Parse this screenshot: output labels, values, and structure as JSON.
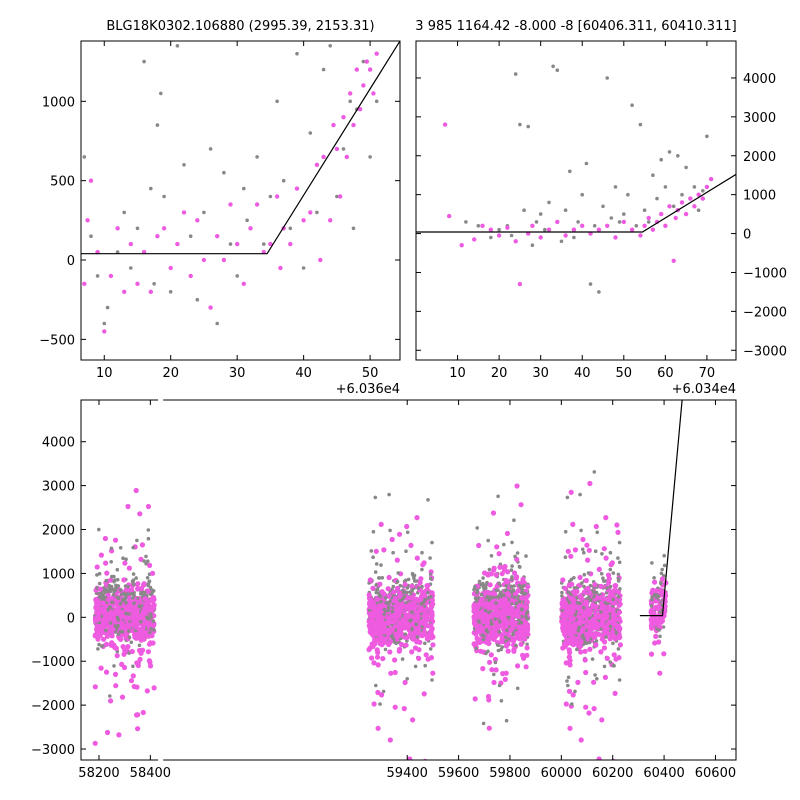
{
  "chart_data": [
    {
      "id": "panel_top_left",
      "type": "scatter",
      "title": "BLG18K0302.106880 (2995.39, 2153.31)",
      "x_offset_label": "+6.036e4",
      "xlim": [
        6.5,
        54.5
      ],
      "ylim": [
        -630,
        1380
      ],
      "xticks": [
        10,
        20,
        30,
        40,
        50
      ],
      "yticks": [
        -500,
        0,
        500,
        1000
      ],
      "ytick_side": "left",
      "series": [
        {
          "color": "#888888",
          "points": [
            [
              7,
              650
            ],
            [
              8,
              150
            ],
            [
              9,
              -100
            ],
            [
              10,
              -400
            ],
            [
              10.5,
              -300
            ],
            [
              12,
              50
            ],
            [
              13,
              300
            ],
            [
              14,
              -50
            ],
            [
              15,
              200
            ],
            [
              16,
              1250
            ],
            [
              17,
              450
            ],
            [
              17.5,
              -150
            ],
            [
              18,
              850
            ],
            [
              18.5,
              1050
            ],
            [
              19,
              400
            ],
            [
              20,
              -200
            ],
            [
              21,
              1350
            ],
            [
              22,
              600
            ],
            [
              23,
              150
            ],
            [
              24,
              -250
            ],
            [
              25,
              300
            ],
            [
              26,
              700
            ],
            [
              27,
              -400
            ],
            [
              28,
              550
            ],
            [
              29,
              100
            ],
            [
              30,
              -100
            ],
            [
              31,
              450
            ],
            [
              31.5,
              250
            ],
            [
              32,
              200
            ],
            [
              33,
              650
            ],
            [
              34,
              100
            ],
            [
              35,
              400
            ],
            [
              36,
              1000
            ],
            [
              37,
              500
            ],
            [
              38,
              200
            ],
            [
              39,
              1300
            ],
            [
              40,
              -50
            ],
            [
              41,
              800
            ],
            [
              42,
              300
            ],
            [
              43,
              1200
            ],
            [
              44,
              1350
            ],
            [
              45,
              400
            ],
            [
              46,
              700
            ],
            [
              47,
              1000
            ],
            [
              47.5,
              200
            ],
            [
              48,
              950
            ],
            [
              49,
              1250
            ],
            [
              50,
              650
            ],
            [
              51,
              1000
            ]
          ]
        },
        {
          "color": "#ee5ae0",
          "points": [
            [
              7,
              -150
            ],
            [
              7.5,
              250
            ],
            [
              8,
              500
            ],
            [
              9,
              50
            ],
            [
              10,
              -450
            ],
            [
              11,
              -100
            ],
            [
              12,
              200
            ],
            [
              13,
              -200
            ],
            [
              14,
              100
            ],
            [
              15,
              -150
            ],
            [
              16,
              50
            ],
            [
              17,
              -200
            ],
            [
              18,
              150
            ],
            [
              19,
              200
            ],
            [
              20,
              -50
            ],
            [
              21,
              100
            ],
            [
              22,
              300
            ],
            [
              23,
              -100
            ],
            [
              24,
              250
            ],
            [
              25,
              0
            ],
            [
              26,
              -300
            ],
            [
              27,
              150
            ],
            [
              28,
              0
            ],
            [
              29,
              350
            ],
            [
              30,
              100
            ],
            [
              31,
              -150
            ],
            [
              32,
              200
            ],
            [
              33,
              350
            ],
            [
              34,
              50
            ],
            [
              35,
              100
            ],
            [
              36,
              400
            ],
            [
              36.5,
              -50
            ],
            [
              37,
              200
            ],
            [
              38,
              100
            ],
            [
              39,
              450
            ],
            [
              40,
              250
            ],
            [
              41,
              300
            ],
            [
              42,
              600
            ],
            [
              42.5,
              0
            ],
            [
              43,
              650
            ],
            [
              44,
              250
            ],
            [
              44.5,
              850
            ],
            [
              45,
              700
            ],
            [
              45.5,
              400
            ],
            [
              46,
              900
            ],
            [
              46.5,
              650
            ],
            [
              47,
              1050
            ],
            [
              47.5,
              850
            ],
            [
              48,
              1200
            ],
            [
              48.5,
              950
            ],
            [
              49,
              1100
            ],
            [
              49.5,
              1250
            ],
            [
              50,
              1200
            ],
            [
              50.5,
              1050
            ],
            [
              51,
              1300
            ]
          ]
        }
      ],
      "model": [
        [
          6.5,
          40
        ],
        [
          34.5,
          40
        ],
        [
          54.5,
          1380
        ]
      ]
    },
    {
      "id": "panel_top_right",
      "type": "scatter",
      "title": "3 985 1164.42 -8.000 -8 [60406.311, 60410.311]",
      "x_offset_label": "+6.034e4",
      "xlim": [
        0,
        77
      ],
      "ylim": [
        -3250,
        4950
      ],
      "xticks": [
        10,
        20,
        30,
        40,
        50,
        60,
        70
      ],
      "yticks": [
        -3000,
        -2000,
        -1000,
        0,
        1000,
        2000,
        3000,
        4000
      ],
      "ytick_side": "right",
      "series": [
        {
          "color": "#888888",
          "points": [
            [
              12,
              300
            ],
            [
              15,
              200
            ],
            [
              18,
              -100
            ],
            [
              20,
              100
            ],
            [
              22,
              200
            ],
            [
              23,
              -50
            ],
            [
              24,
              4100
            ],
            [
              25,
              2800
            ],
            [
              26,
              600
            ],
            [
              27,
              2750
            ],
            [
              28,
              -300
            ],
            [
              29,
              300
            ],
            [
              30,
              500
            ],
            [
              31,
              100
            ],
            [
              32,
              800
            ],
            [
              33,
              4300
            ],
            [
              34,
              4200
            ],
            [
              35,
              -200
            ],
            [
              36,
              600
            ],
            [
              37,
              1600
            ],
            [
              38,
              -100
            ],
            [
              39,
              300
            ],
            [
              40,
              1000
            ],
            [
              41,
              1800
            ],
            [
              42,
              -1300
            ],
            [
              43,
              200
            ],
            [
              44,
              -1500
            ],
            [
              45,
              700
            ],
            [
              46,
              4000
            ],
            [
              47,
              400
            ],
            [
              48,
              1200
            ],
            [
              49,
              300
            ],
            [
              50,
              500
            ],
            [
              51,
              1000
            ],
            [
              52,
              3300
            ],
            [
              53,
              200
            ],
            [
              54,
              2800
            ],
            [
              55,
              600
            ],
            [
              56,
              300
            ],
            [
              57,
              1500
            ],
            [
              58,
              900
            ],
            [
              59,
              1900
            ],
            [
              60,
              1200
            ],
            [
              61,
              2100
            ],
            [
              62,
              700
            ],
            [
              63,
              2000
            ],
            [
              64,
              1000
            ],
            [
              65,
              1700
            ],
            [
              66,
              900
            ],
            [
              67,
              1200
            ],
            [
              68,
              600
            ],
            [
              69,
              1100
            ],
            [
              70,
              2500
            ]
          ]
        },
        {
          "color": "#ee5ae0",
          "points": [
            [
              7,
              2800
            ],
            [
              8,
              450
            ],
            [
              11,
              -300
            ],
            [
              14,
              -150
            ],
            [
              16,
              200
            ],
            [
              18,
              100
            ],
            [
              20,
              -50
            ],
            [
              22,
              150
            ],
            [
              24,
              -200
            ],
            [
              25,
              -1300
            ],
            [
              27,
              0
            ],
            [
              28,
              200
            ],
            [
              30,
              -100
            ],
            [
              32,
              100
            ],
            [
              34,
              300
            ],
            [
              36,
              -50
            ],
            [
              38,
              100
            ],
            [
              40,
              200
            ],
            [
              42,
              0
            ],
            [
              44,
              100
            ],
            [
              46,
              200
            ],
            [
              48,
              -100
            ],
            [
              50,
              300
            ],
            [
              52,
              100
            ],
            [
              54,
              -50
            ],
            [
              55,
              200
            ],
            [
              56,
              400
            ],
            [
              57,
              100
            ],
            [
              58,
              300
            ],
            [
              59,
              500
            ],
            [
              60,
              200
            ],
            [
              61,
              700
            ],
            [
              62,
              -700
            ],
            [
              62.5,
              400
            ],
            [
              63,
              600
            ],
            [
              64,
              800
            ],
            [
              65,
              500
            ],
            [
              66,
              900
            ],
            [
              67,
              700
            ],
            [
              68,
              1000
            ],
            [
              69,
              900
            ],
            [
              70,
              1200
            ],
            [
              71,
              1400
            ]
          ]
        }
      ],
      "model": [
        [
          0,
          40
        ],
        [
          54.5,
          40
        ],
        [
          77,
          1520
        ]
      ]
    },
    {
      "id": "panel_bottom",
      "type": "scatter",
      "title": "",
      "x_offset_label": "",
      "xlim": [
        58130,
        60680
      ],
      "ylim": [
        -3250,
        4950
      ],
      "xticks": [
        58200,
        58400,
        59400,
        59600,
        59800,
        60000,
        60200,
        60400,
        60600
      ],
      "yticks": [
        -3000,
        -2000,
        -1000,
        0,
        1000,
        2000,
        3000,
        4000
      ],
      "ytick_side": "left",
      "axis_breaks": [
        [
          58430,
          58450
        ]
      ],
      "seasons": [
        {
          "x_from": 58185,
          "x_to": 58415,
          "core_spread": 500,
          "outer_spread": 2600
        },
        {
          "x_from": 59250,
          "x_to": 59500,
          "core_spread": 550,
          "outer_spread": 2800
        },
        {
          "x_from": 59660,
          "x_to": 59870,
          "core_spread": 550,
          "outer_spread": 2800
        },
        {
          "x_from": 60000,
          "x_to": 60230,
          "core_spread": 550,
          "outer_spread": 2800
        },
        {
          "x_from": 60350,
          "x_to": 60408,
          "core_spread": 400,
          "outer_spread": 1600
        }
      ],
      "model": [
        [
          60306,
          40
        ],
        [
          60394,
          40
        ],
        [
          60470,
          4950
        ]
      ]
    }
  ]
}
